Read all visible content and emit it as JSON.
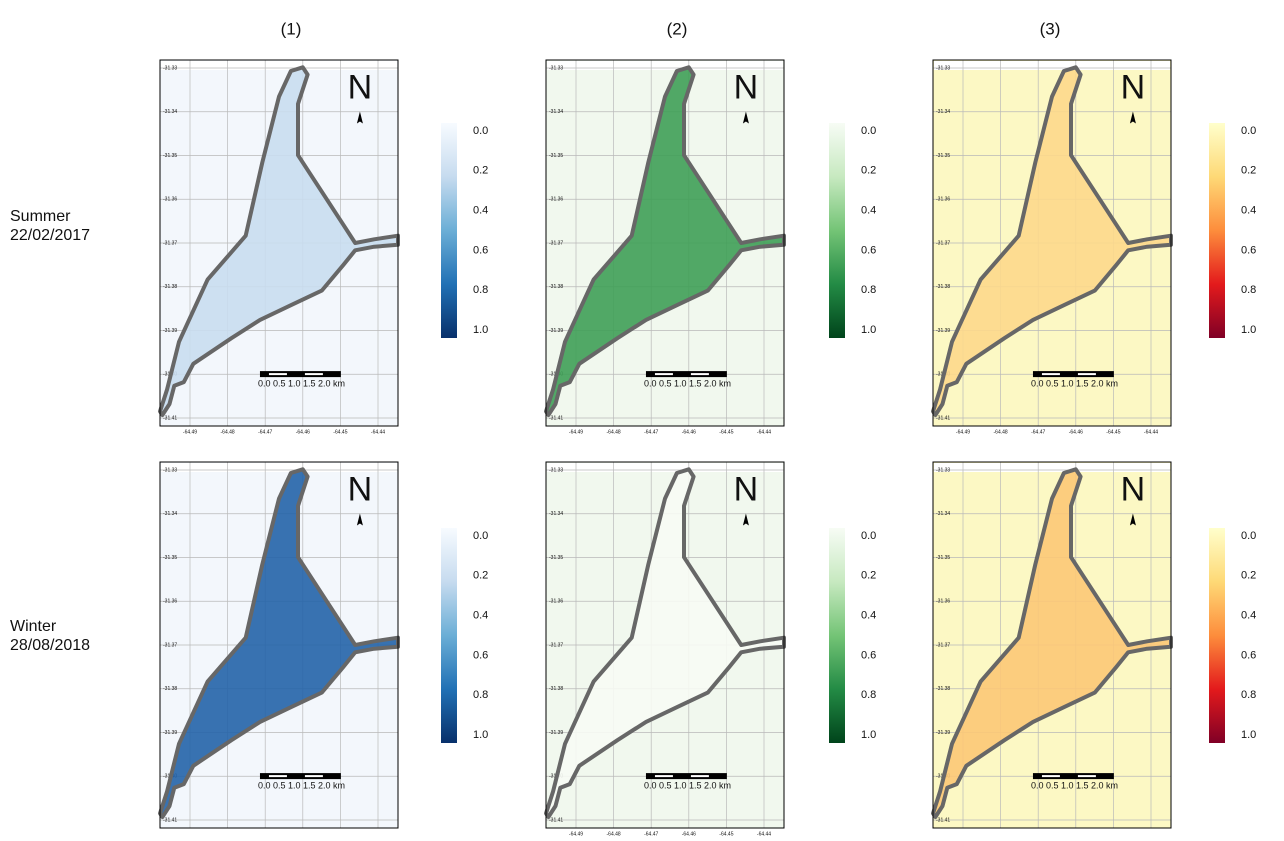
{
  "columns": [
    "(1)",
    "(2)",
    "(3)"
  ],
  "rows": [
    {
      "season": "Summer",
      "date": "22/02/2017"
    },
    {
      "season": "Winter",
      "date": "28/08/2018"
    }
  ],
  "colormaps": [
    [
      "#f7fbff",
      "#c6dbef",
      "#6baed6",
      "#2171b5",
      "#08306b"
    ],
    [
      "#f7fcf5",
      "#c7e9c0",
      "#74c476",
      "#238b45",
      "#00441b"
    ],
    [
      "#ffffcc",
      "#fed976",
      "#fd8d3c",
      "#e31a1c",
      "#800026"
    ]
  ],
  "colorbar_ticks": [
    "0.0",
    "0.2",
    "0.4",
    "0.6",
    "0.8",
    "1.0"
  ],
  "north": "N",
  "scale_label": "0.0 0.5 1.0 1.5 2.0 km",
  "lat_labels": [
    "-31.33",
    "-31.34",
    "-31.35",
    "-31.36",
    "-31.37",
    "-31.38",
    "-31.39",
    "-31.40",
    "-31.41"
  ],
  "lon_labels": [
    "-64.49",
    "-64.48",
    "-64.47",
    "-64.46",
    "-64.45",
    "-64.44"
  ],
  "panels": [
    [
      {
        "background": "#f3f7fc",
        "fill": "#c9ddef",
        "lon_labels": true
      },
      {
        "background": "#f1f8ee",
        "fill": "#3f9f56",
        "lon_labels": true
      },
      {
        "background": "#fcf8c4",
        "fill": "#fdd88c",
        "lon_labels": true
      }
    ],
    [
      {
        "background": "#f3f7fc",
        "fill": "#2463a8",
        "lon_labels": false
      },
      {
        "background": "#f1f8ee",
        "fill": "#f7fbf4",
        "lon_labels": true
      },
      {
        "background": "#fcf8c4",
        "fill": "#fcc877",
        "lon_labels": false
      }
    ]
  ]
}
